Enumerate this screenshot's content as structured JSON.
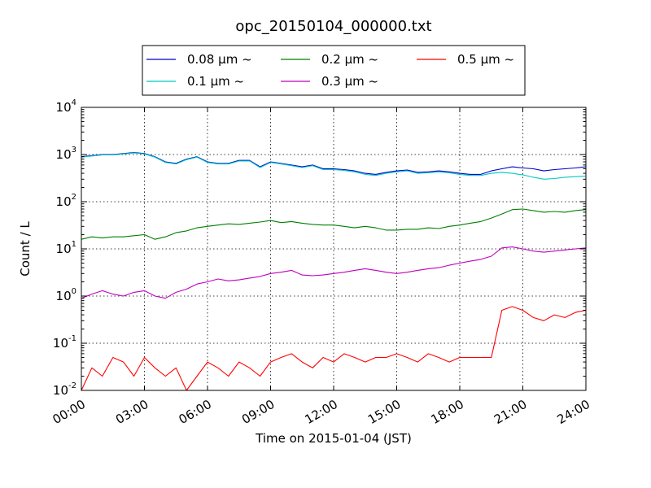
{
  "chart_data": {
    "type": "line",
    "title": "opc_20150104_000000.txt",
    "xlabel": "Time on 2015-01-04 (JST)",
    "ylabel": "Count / L",
    "xlim": [
      "00:00",
      "24:00"
    ],
    "ylim": [
      0.01,
      10000
    ],
    "yscale": "log",
    "grid": true,
    "legend_position": "top-center, outside plot",
    "x_ticks": [
      "00:00",
      "03:00",
      "06:00",
      "09:00",
      "12:00",
      "15:00",
      "18:00",
      "21:00",
      "24:00"
    ],
    "y_ticks": [
      {
        "base": "10",
        "exp": "-2"
      },
      {
        "base": "10",
        "exp": "-1"
      },
      {
        "base": "10",
        "exp": "0"
      },
      {
        "base": "10",
        "exp": "1"
      },
      {
        "base": "10",
        "exp": "2"
      },
      {
        "base": "10",
        "exp": "3"
      },
      {
        "base": "10",
        "exp": "4"
      }
    ],
    "x_hours": [
      0,
      0.5,
      1,
      1.5,
      2,
      2.5,
      3,
      3.5,
      4,
      4.5,
      5,
      5.5,
      6,
      6.5,
      7,
      7.5,
      8,
      8.5,
      9,
      9.5,
      10,
      10.5,
      11,
      11.5,
      12,
      12.5,
      13,
      13.5,
      14,
      14.5,
      15,
      15.5,
      16,
      16.5,
      17,
      17.5,
      18,
      18.5,
      19,
      19.5,
      20,
      20.5,
      21,
      21.5,
      22,
      22.5,
      23,
      23.5,
      24
    ],
    "series": [
      {
        "name": "0.08 μm ~",
        "color": "#0000cc",
        "values": [
          900,
          950,
          1000,
          1000,
          1050,
          1100,
          1050,
          900,
          700,
          650,
          800,
          900,
          700,
          650,
          650,
          750,
          750,
          550,
          700,
          650,
          600,
          550,
          600,
          500,
          500,
          480,
          450,
          400,
          380,
          420,
          450,
          470,
          420,
          430,
          450,
          430,
          400,
          380,
          380,
          450,
          500,
          550,
          520,
          500,
          450,
          480,
          500,
          520,
          550
        ]
      },
      {
        "name": "0.1 μm ~",
        "color": "#00c8c8",
        "values": [
          880,
          930,
          980,
          980,
          1030,
          1080,
          1030,
          880,
          680,
          630,
          780,
          880,
          680,
          630,
          630,
          730,
          730,
          530,
          680,
          630,
          580,
          530,
          580,
          480,
          480,
          460,
          430,
          380,
          360,
          400,
          430,
          450,
          400,
          410,
          430,
          410,
          380,
          360,
          360,
          400,
          420,
          400,
          370,
          330,
          300,
          310,
          330,
          340,
          350
        ]
      },
      {
        "name": "0.2 μm ~",
        "color": "#007f00",
        "values": [
          16,
          18,
          17,
          18,
          18,
          19,
          20,
          16,
          18,
          22,
          24,
          28,
          30,
          32,
          34,
          33,
          35,
          37,
          40,
          36,
          38,
          35,
          33,
          32,
          32,
          30,
          28,
          30,
          28,
          25,
          25,
          26,
          26,
          28,
          27,
          30,
          32,
          35,
          38,
          45,
          55,
          68,
          70,
          65,
          60,
          62,
          60,
          65,
          68
        ]
      },
      {
        "name": "0.3 μm ~",
        "color": "#bf00bf",
        "values": [
          0.9,
          1.1,
          1.3,
          1.1,
          1.0,
          1.2,
          1.3,
          1.0,
          0.9,
          1.2,
          1.4,
          1.8,
          2.0,
          2.3,
          2.1,
          2.2,
          2.4,
          2.6,
          3.0,
          3.2,
          3.5,
          2.8,
          2.7,
          2.8,
          3.0,
          3.2,
          3.5,
          3.8,
          3.5,
          3.2,
          3.0,
          3.2,
          3.5,
          3.8,
          4.0,
          4.5,
          5.0,
          5.5,
          6.0,
          7.0,
          10.5,
          11,
          10,
          9.0,
          8.5,
          9.0,
          9.5,
          10,
          10.5
        ]
      },
      {
        "name": "0.5 μm ~",
        "color": "#ff0000",
        "values": [
          0.01,
          0.03,
          0.02,
          0.05,
          0.04,
          0.02,
          0.05,
          0.03,
          0.02,
          0.03,
          0.01,
          0.02,
          0.04,
          0.03,
          0.02,
          0.04,
          0.03,
          0.02,
          0.04,
          0.05,
          0.06,
          0.04,
          0.03,
          0.05,
          0.04,
          0.06,
          0.05,
          0.04,
          0.05,
          0.05,
          0.06,
          0.05,
          0.04,
          0.06,
          0.05,
          0.04,
          0.05,
          0.05,
          0.05,
          0.05,
          0.5,
          0.6,
          0.5,
          0.35,
          0.3,
          0.4,
          0.35,
          0.45,
          0.5
        ]
      }
    ]
  }
}
